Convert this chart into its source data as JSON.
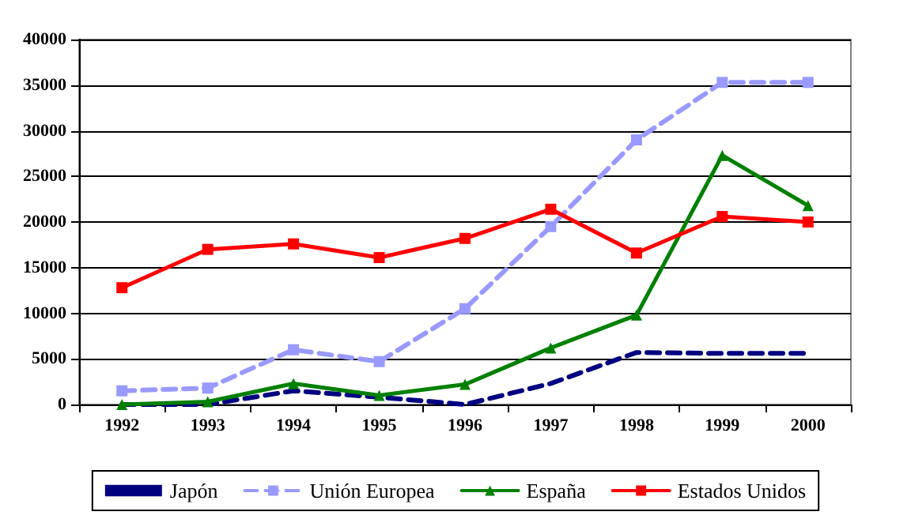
{
  "chart_data": {
    "type": "line",
    "categories": [
      "1992",
      "1993",
      "1994",
      "1995",
      "1996",
      "1997",
      "1998",
      "1999",
      "2000"
    ],
    "series": [
      {
        "name": "Japón",
        "color": "#000080",
        "line_style": "dashed",
        "marker": "none",
        "values": [
          0,
          0,
          1500,
          800,
          0,
          2300,
          5700,
          5600,
          5600
        ]
      },
      {
        "name": "Unión Europea",
        "color": "#9999ff",
        "line_style": "dashed",
        "marker": "square",
        "values": [
          1500,
          1800,
          6000,
          4700,
          10500,
          19500,
          29000,
          35300,
          35300
        ]
      },
      {
        "name": "España",
        "color": "#008000",
        "line_style": "solid",
        "marker": "triangle",
        "values": [
          0,
          300,
          2300,
          1000,
          2200,
          6200,
          9800,
          27300,
          21800
        ]
      },
      {
        "name": "Estados Unidos",
        "color": "#ff0000",
        "line_style": "solid",
        "marker": "square",
        "values": [
          12800,
          17000,
          17600,
          16100,
          18200,
          21400,
          16600,
          20600,
          20000
        ]
      }
    ],
    "ylim": [
      0,
      40000
    ],
    "yticks": [
      0,
      5000,
      10000,
      15000,
      20000,
      25000,
      30000,
      35000,
      40000
    ],
    "grid": "y",
    "legend": "bottom"
  }
}
